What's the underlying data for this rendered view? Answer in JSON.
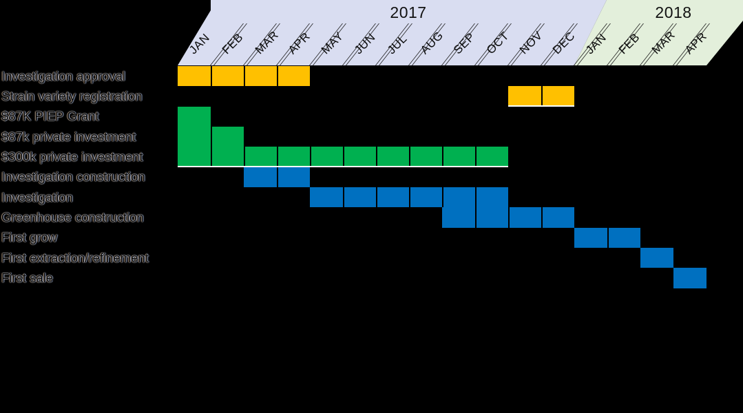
{
  "page": {
    "background": "#000000"
  },
  "header": {
    "years": [
      {
        "label": "2017",
        "band_color": "#D9DDF1",
        "months": [
          "JAN",
          "FEB",
          "MAR",
          "APR",
          "MAY",
          "JUN",
          "JUL",
          "AUG",
          "SEP",
          "OCT",
          "NOV",
          "DEC"
        ]
      },
      {
        "label": "2018",
        "band_color": "#E3EFDB",
        "months": [
          "JAN",
          "FEB",
          "MAR",
          "APR"
        ]
      }
    ]
  },
  "palette": {
    "gold": "#FFC000",
    "green": "#00B050",
    "blue": "#0070C0",
    "grid_line": "#000000",
    "underline": "#FFFFFF"
  },
  "chart_data": {
    "type": "gantt",
    "title": "",
    "x_axis": {
      "unit": "month",
      "ticks": [
        "JAN 2017",
        "FEB 2017",
        "MAR 2017",
        "APR 2017",
        "MAY 2017",
        "JUN 2017",
        "JUL 2017",
        "AUG 2017",
        "SEP 2017",
        "OCT 2017",
        "NOV 2017",
        "DEC 2017",
        "JAN 2018",
        "FEB 2018",
        "MAR 2018",
        "APR 2018"
      ]
    },
    "tasks": [
      {
        "label": "Investigation approval",
        "color": "#FFC000",
        "start": "JAN 2017",
        "end": "APR 2017",
        "start_index": 0,
        "end_index": 3,
        "white_underline": false
      },
      {
        "label": "Strain variety registration",
        "color": "#FFC000",
        "start": "NOV 2017",
        "end": "DEC 2017",
        "start_index": 10,
        "end_index": 11,
        "white_underline": true
      },
      {
        "label": "$87K PIEP Grant",
        "color": "#00B050",
        "start": "JAN 2017",
        "end": "JAN 2017",
        "start_index": 0,
        "end_index": 0,
        "white_underline": false
      },
      {
        "label": "$87k private investment",
        "color": "#00B050",
        "start": "JAN 2017",
        "end": "FEB 2017",
        "start_index": 0,
        "end_index": 1,
        "white_underline": false
      },
      {
        "label": "$300k private investment",
        "color": "#00B050",
        "start": "JAN 2017",
        "end": "OCT 2017",
        "start_index": 0,
        "end_index": 9,
        "white_underline": true
      },
      {
        "label": "Investigation construction",
        "color": "#0070C0",
        "start": "MAR 2017",
        "end": "APR 2017",
        "start_index": 2,
        "end_index": 3,
        "white_underline": false
      },
      {
        "label": "Investigation",
        "color": "#0070C0",
        "start": "MAY 2017",
        "end": "OCT 2017",
        "start_index": 4,
        "end_index": 9,
        "white_underline": false
      },
      {
        "label": "Greenhouse construction",
        "color": "#0070C0",
        "start": "SEP 2017",
        "end": "DEC 2017",
        "start_index": 8,
        "end_index": 11,
        "white_underline": false
      },
      {
        "label": "First grow",
        "color": "#0070C0",
        "start": "JAN 2018",
        "end": "FEB 2018",
        "start_index": 12,
        "end_index": 13,
        "white_underline": false
      },
      {
        "label": "First extraction/refinement",
        "color": "#0070C0",
        "start": "MAR 2018",
        "end": "MAR 2018",
        "start_index": 14,
        "end_index": 14,
        "white_underline": false
      },
      {
        "label": "First sale",
        "color": "#0070C0",
        "start": "APR 2018",
        "end": "APR 2018",
        "start_index": 15,
        "end_index": 15,
        "white_underline": false
      }
    ],
    "legend": null,
    "grid": "monthly cells separated by black lines"
  }
}
